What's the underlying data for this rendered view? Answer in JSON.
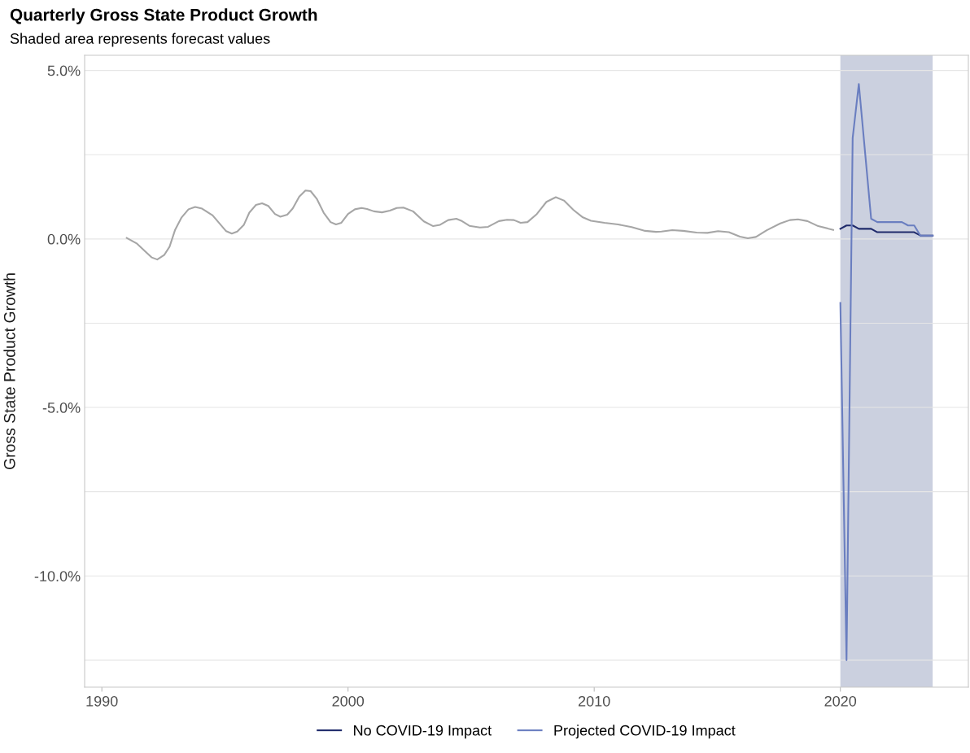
{
  "chart_data": {
    "type": "line",
    "title": "Quarterly Gross State Product Growth",
    "subtitle": "Shaded area represents forecast values",
    "ylabel": "Gross State Product Growth",
    "series": [
      {
        "color": "#a6a6a6",
        "x": [
          1991.01,
          1991.43,
          1992.03,
          1992.25,
          1992.53,
          1992.75,
          1992.97,
          1993.24,
          1993.52,
          1993.79,
          1994.07,
          1994.5,
          1995.05,
          1995.28,
          1995.5,
          1995.77,
          1995.99,
          1996.26,
          1996.51,
          1996.76,
          1997.03,
          1997.25,
          1997.53,
          1997.75,
          1998.02,
          1998.27,
          1998.48,
          1998.74,
          1999.01,
          1999.29,
          1999.51,
          1999.73,
          2000.0,
          2000.28,
          2000.55,
          2000.77,
          2001.05,
          2001.38,
          2001.7,
          2001.98,
          2002.25,
          2002.64,
          2003.08,
          2003.46,
          2003.74,
          2004.07,
          2004.4,
          2004.6,
          2004.93,
          2005.36,
          2005.69,
          2006.13,
          2006.46,
          2006.74,
          2007.01,
          2007.29,
          2007.67,
          2008.06,
          2008.44,
          2008.77,
          2009.16,
          2009.54,
          2009.87,
          2010.42,
          2010.97,
          2011.52,
          2012.07,
          2012.51,
          2012.73,
          2013.17,
          2013.61,
          2014.16,
          2014.6,
          2015.03,
          2015.47,
          2015.92,
          2016.24,
          2016.57,
          2017.01,
          2017.56,
          2017.95,
          2018.28,
          2018.66,
          2019.1,
          2019.71
        ],
        "values": [
          0.03,
          -0.14,
          -0.55,
          -0.61,
          -0.48,
          -0.23,
          0.26,
          0.64,
          0.88,
          0.95,
          0.9,
          0.7,
          0.23,
          0.16,
          0.22,
          0.42,
          0.78,
          1.01,
          1.06,
          0.98,
          0.74,
          0.66,
          0.72,
          0.9,
          1.26,
          1.44,
          1.42,
          1.18,
          0.78,
          0.5,
          0.43,
          0.48,
          0.74,
          0.88,
          0.92,
          0.89,
          0.82,
          0.79,
          0.84,
          0.92,
          0.93,
          0.82,
          0.52,
          0.38,
          0.42,
          0.56,
          0.6,
          0.54,
          0.39,
          0.34,
          0.36,
          0.53,
          0.57,
          0.56,
          0.48,
          0.5,
          0.74,
          1.1,
          1.24,
          1.14,
          0.86,
          0.64,
          0.54,
          0.48,
          0.43,
          0.35,
          0.24,
          0.21,
          0.22,
          0.26,
          0.24,
          0.19,
          0.18,
          0.23,
          0.2,
          0.07,
          0.02,
          0.06,
          0.26,
          0.46,
          0.56,
          0.58,
          0.53,
          0.38,
          0.27
        ]
      },
      {
        "name": "No COVID-19 Impact",
        "color": "#1f2a6b",
        "x": [
          2020.0,
          2020.25,
          2020.5,
          2020.75,
          2021.0,
          2021.25,
          2021.5,
          2021.75,
          2022.0,
          2022.25,
          2022.5,
          2022.75,
          2023.0,
          2023.25,
          2023.5,
          2023.75
        ],
        "values": [
          0.3,
          0.4,
          0.4,
          0.3,
          0.3,
          0.3,
          0.2,
          0.2,
          0.2,
          0.2,
          0.2,
          0.2,
          0.2,
          0.1,
          0.1,
          0.1
        ]
      },
      {
        "name": "Projected COVID-19 Impact",
        "color": "#6a7ec0",
        "x": [
          2020.0,
          2020.25,
          2020.5,
          2020.75,
          2021.0,
          2021.25,
          2021.5,
          2021.75,
          2022.0,
          2022.25,
          2022.5,
          2022.75,
          2023.0,
          2023.25,
          2023.5,
          2023.75
        ],
        "values": [
          -1.9,
          -12.5,
          3.0,
          4.6,
          2.6,
          0.6,
          0.5,
          0.5,
          0.5,
          0.5,
          0.5,
          0.4,
          0.4,
          0.1,
          0.1,
          0.1
        ]
      }
    ],
    "xlim": [
      1989.3,
      2025.2
    ],
    "xticks": [
      1990,
      2000,
      2010,
      2020
    ],
    "ylim": [
      -13.3,
      5.45
    ],
    "yticks": [
      {
        "value": 5,
        "label": "5.0%"
      },
      {
        "value": 2.5,
        "label": null
      },
      {
        "value": 0,
        "label": "0.0%"
      },
      {
        "value": -2.5,
        "label": null
      },
      {
        "value": -5,
        "label": "-5.0%"
      },
      {
        "value": -7.5,
        "label": null
      },
      {
        "value": -10,
        "label": "-10.0%"
      },
      {
        "value": -12.5,
        "label": null
      }
    ],
    "bands": [
      {
        "axis": "x",
        "from": 2020.0,
        "to": 2023.75,
        "color": "#cbd0df"
      }
    ],
    "grid": "y",
    "legend": "bottom",
    "marker": "none",
    "line_style": "solid"
  }
}
